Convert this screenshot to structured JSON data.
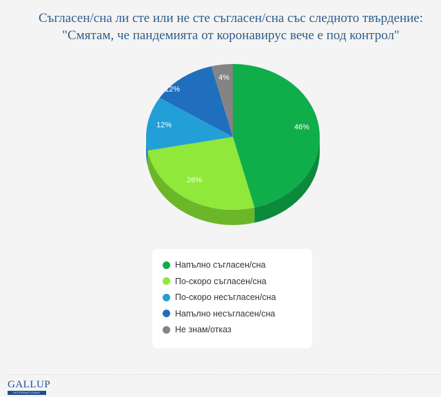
{
  "title": {
    "line1": "Съгласен/сна ли сте или не сте съгласен/сна със следното твърдение:",
    "line2": "\"Смятам, че пандемията от коронавирус вече е под контрол\""
  },
  "legend": {
    "items": [
      {
        "label": "Напълно съгласен/сна",
        "color": "#0fae4b"
      },
      {
        "label": "По-скоро съгласен/сна",
        "color": "#8fe83a"
      },
      {
        "label": "По-скоро несъгласен/сна",
        "color": "#239fd7"
      },
      {
        "label": "Напълно несъгласен/сна",
        "color": "#1f6fbe"
      },
      {
        "label": "Не знам/отказ",
        "color": "#848484"
      }
    ]
  },
  "logo": {
    "top": "GALLUP",
    "bottom": "INTERNATIONAL"
  },
  "chart_data": {
    "type": "pie",
    "title": "Съгласен/сна ли сте или не сте съгласен/сна със следното твърдение: \"Смятам, че пандемията от коронавирус вече е под контрол\"",
    "categories": [
      "Напълно съгласен/сна",
      "По-скоро съгласен/сна",
      "По-скоро несъгласен/сна",
      "Напълно несъгласен/сна",
      "Не знам/отказ"
    ],
    "values": [
      46,
      26,
      12,
      12,
      4
    ],
    "labels": [
      "46%",
      "26%",
      "12%",
      "12%",
      "4%"
    ],
    "colors": [
      "#0fae4b",
      "#8fe83a",
      "#239fd7",
      "#1f6fbe",
      "#848484"
    ],
    "side_colors": [
      "#0a8a3a",
      "#6cb62a",
      "#1a7fae",
      "#175a9a",
      "#666666"
    ],
    "style": "3d",
    "legend_position": "bottom"
  }
}
